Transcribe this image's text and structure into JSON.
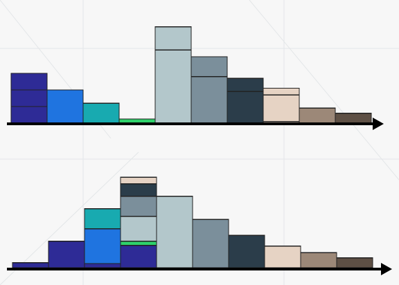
{
  "colors": {
    "background": "#f7f7f7",
    "axis": "#000000",
    "indigo": "#2e2b96",
    "blue": "#1f74e0",
    "teal": "#18aab0",
    "green": "#2fd16b",
    "light_steel": "#b3c7cb",
    "steel": "#7b8f9b",
    "dark_slate": "#2b3d4a",
    "beige": "#e6d3c4",
    "taupe": "#9c8878",
    "dark_brown": "#5e5045"
  },
  "top_diagram": {
    "bars": [
      {
        "color": "indigo",
        "units": [
          1,
          1,
          1
        ],
        "label": ""
      },
      {
        "color": "blue",
        "units": [
          2
        ],
        "label": ""
      },
      {
        "color": "teal",
        "units": [
          1.2
        ],
        "label": ""
      },
      {
        "color": "green",
        "units": [
          0.25
        ],
        "label": ""
      },
      {
        "color": "light_steel",
        "units": [
          4.4,
          1.4
        ],
        "label": ""
      },
      {
        "color": "steel",
        "units": [
          2.8,
          1.2
        ],
        "label": ""
      },
      {
        "color": "dark_slate",
        "units": [
          1.9,
          0.8
        ],
        "label": ""
      },
      {
        "color": "beige",
        "units": [
          0.1,
          1.6,
          0.4
        ],
        "label": ""
      },
      {
        "color": "taupe",
        "units": [
          0.9
        ],
        "label": ""
      },
      {
        "color": "dark_brown",
        "units": [
          0.6
        ],
        "label": ""
      }
    ]
  },
  "bottom_diagram": {
    "bars": [
      {
        "stack": [
          {
            "color": "indigo",
            "units": 0.3
          }
        ]
      },
      {
        "stack": [
          {
            "color": "indigo",
            "units": 1.6
          }
        ]
      },
      {
        "stack": [
          {
            "color": "indigo",
            "units": 0.25
          },
          {
            "color": "blue",
            "units": 2.1
          },
          {
            "color": "teal",
            "units": 1.2
          }
        ]
      },
      {
        "stack": [
          {
            "color": "indigo",
            "units": 1.35
          },
          {
            "color": "green",
            "units": 0.25
          },
          {
            "color": "light_steel",
            "units": 1.5
          },
          {
            "color": "steel",
            "units": 1.2
          },
          {
            "color": "dark_slate",
            "units": 0.75
          },
          {
            "color": "beige",
            "units": 0.4
          }
        ]
      },
      {
        "stack": [
          {
            "color": "light_steel",
            "units": 4.3
          }
        ]
      },
      {
        "stack": [
          {
            "color": "steel",
            "units": 2.9
          }
        ]
      },
      {
        "stack": [
          {
            "color": "dark_slate",
            "units": 1.95
          }
        ]
      },
      {
        "stack": [
          {
            "color": "beige",
            "units": 1.3
          }
        ]
      },
      {
        "stack": [
          {
            "color": "taupe",
            "units": 0.9
          }
        ]
      },
      {
        "stack": [
          {
            "color": "dark_brown",
            "units": 0.6
          }
        ]
      }
    ]
  }
}
